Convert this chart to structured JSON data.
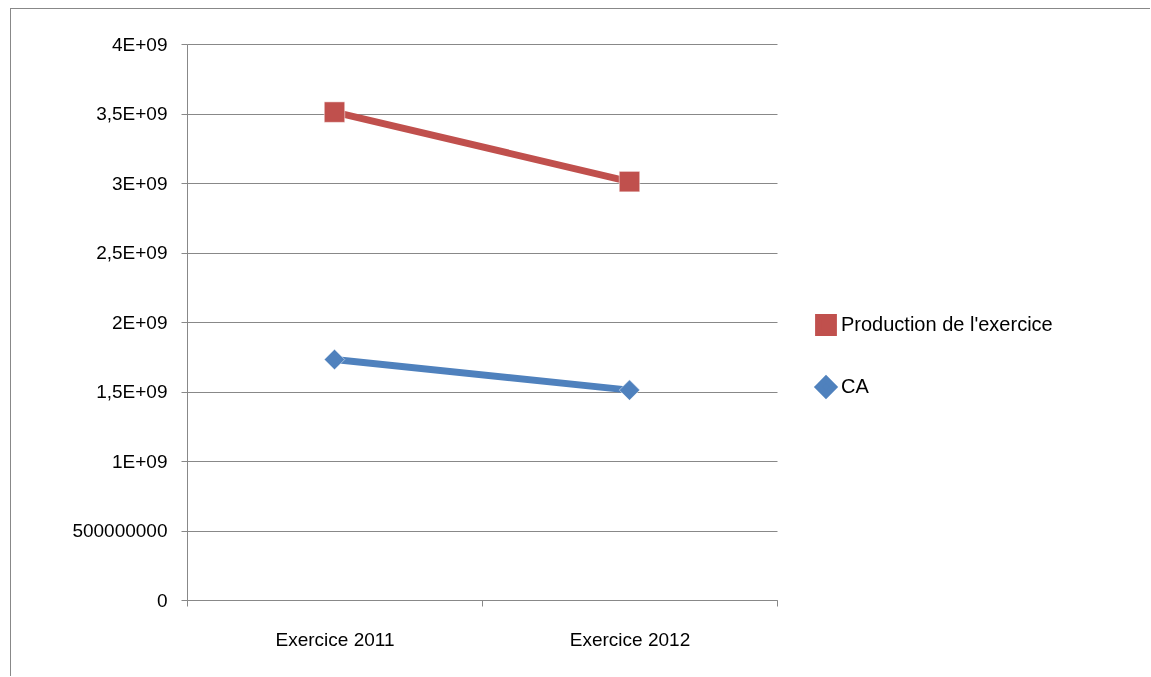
{
  "chart_data": {
    "type": "line",
    "categories": [
      "Exercice 2011",
      "Exercice 2012"
    ],
    "series": [
      {
        "name": "Production de l'exercice",
        "color": "#c0504d",
        "marker": "square",
        "values": [
          3510000000,
          3010000000
        ]
      },
      {
        "name": "CA",
        "color": "#4f81bd",
        "marker": "diamond",
        "values": [
          1730000000,
          1510000000
        ]
      }
    ],
    "ylim": [
      0,
      4000000000
    ],
    "yticks": [
      0,
      {
        "value": 500000000,
        "label": "500000000"
      },
      {
        "value": 1000000000,
        "label": "1E+09"
      },
      {
        "value": 1500000000,
        "label": "1,5E+09"
      },
      {
        "value": 2000000000,
        "label": "2E+09"
      },
      {
        "value": 2500000000,
        "label": "2,5E+09"
      },
      {
        "value": 3000000000,
        "label": "3E+09"
      },
      {
        "value": 3500000000,
        "label": "3,5E+09"
      },
      {
        "value": 4000000000,
        "label": "4E+09"
      }
    ],
    "grid": "y",
    "legend": "right",
    "line_style": "solid"
  }
}
